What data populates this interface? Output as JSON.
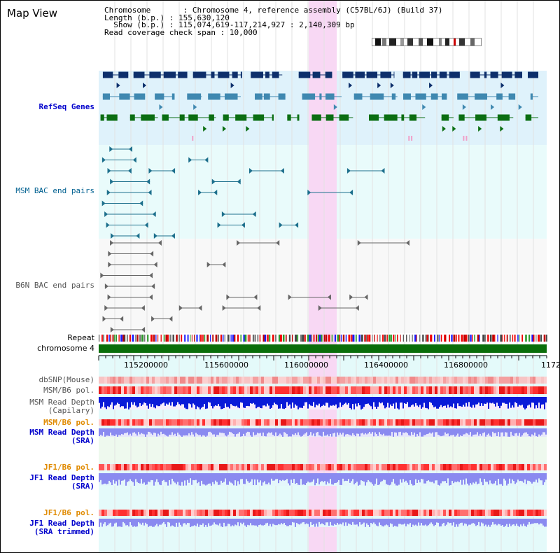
{
  "page": {
    "title": "Map View"
  },
  "info": {
    "chromosome_label": "Chromosome",
    "chromosome_value": "Chromosome 4, reference assembly (C57BL/6J) (Build 37)",
    "length_label": "Length (b.p.)",
    "length_value": "155,630,120",
    "show_label": "Show (b.p.)",
    "show_value": "115,074,619-117,214,927 : 2,140,309 bp",
    "coverage_label": "Read coverage check span",
    "coverage_value": "10,000"
  },
  "tracks": {
    "refseq": "RefSeq Genes",
    "msm_bac": "MSM BAC end pairs",
    "b6n_bac": "B6N BAC end pairs",
    "repeat": "Repeat",
    "chromosome": "chromosome 4",
    "dbsnp": "dbSNP(Mouse)",
    "msm_b6_pol": "MSM/B6 pol.",
    "msm_depth_cap": "MSM Read Depth\n(Capilary)",
    "msm_b6_pol2": "MSM/B6 pol.",
    "msm_depth_sra": "MSM Read Depth\n(SRA)",
    "jf1_b6_pol": "JF1/B6 pol.",
    "jf1_depth_sra": "JF1 Read Depth\n(SRA)",
    "jf1_b6_pol2": "JF1/B6 pol.",
    "jf1_depth_trim": "JF1 Read Depth\n(SRA trimmed)"
  },
  "axis": {
    "ticks": [
      "115200000",
      "115600000",
      "116000000",
      "116400000",
      "116800000",
      "1172"
    ]
  },
  "colors": {
    "highlight": "#f8d8f4",
    "refseq_bg": "#dff2fb",
    "bac_bg": "#e9fbfb",
    "gene_dark": "#0d2f6b",
    "gene_mid": "#3f88b0",
    "gene_green": "#0b6e12",
    "msm_bac": "#1d6f8c",
    "b6n_bac": "#666666",
    "chromosome": "#0a6e0a",
    "depth_dark": "#0a1ad8",
    "depth_light": "#8a8af0"
  }
}
